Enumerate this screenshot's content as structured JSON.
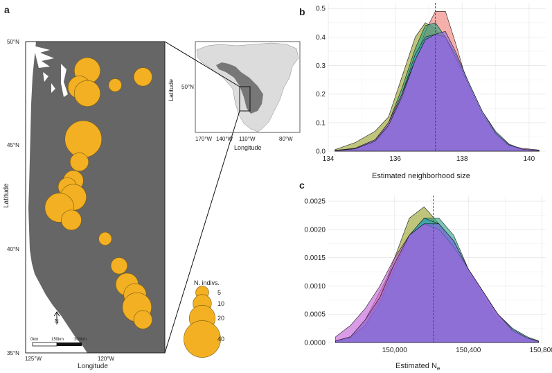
{
  "panel_labels": {
    "a": "a",
    "b": "b",
    "c": "c"
  },
  "colors": {
    "land": "#666666",
    "water": "#ffffff",
    "point": "#f2b022",
    "point_stroke": "#7a5a10",
    "inset_land": "#dcdcdc",
    "inset_range": "#777777",
    "grid": "#e6e6e6",
    "series": [
      "#9aa12c",
      "#ef7f78",
      "#26a385",
      "#2a9dbf",
      "#c35fd6",
      "#8a6be0"
    ]
  },
  "map": {
    "lat_ticks": [
      "50°N",
      "45°N",
      "40°N",
      "35°N"
    ],
    "lon_ticks": [
      "125°W",
      "120°W"
    ],
    "xlabel": "Longitude",
    "ylabel": "Latitude",
    "scale_labels": [
      "0km",
      "150km",
      "300km"
    ],
    "north": "N",
    "points": [
      {
        "lat": 48.6,
        "lon": -122.4,
        "n": 20
      },
      {
        "lat": 48.3,
        "lon": -119.6,
        "n": 10
      },
      {
        "lat": 47.9,
        "lon": -121.0,
        "n": 5
      },
      {
        "lat": 47.8,
        "lon": -122.8,
        "n": 15
      },
      {
        "lat": 47.5,
        "lon": -122.4,
        "n": 20
      },
      {
        "lat": 45.3,
        "lon": -122.6,
        "n": 40
      },
      {
        "lat": 44.2,
        "lon": -122.8,
        "n": 10
      },
      {
        "lat": 43.4,
        "lon": -123.4,
        "n": 2
      },
      {
        "lat": 43.3,
        "lon": -123.1,
        "n": 12
      },
      {
        "lat": 43.0,
        "lon": -123.4,
        "n": 10
      },
      {
        "lat": 42.5,
        "lon": -123.1,
        "n": 20
      },
      {
        "lat": 42.0,
        "lon": -123.8,
        "n": 25
      },
      {
        "lat": 41.4,
        "lon": -123.2,
        "n": 12
      },
      {
        "lat": 40.5,
        "lon": -121.5,
        "n": 5
      },
      {
        "lat": 39.2,
        "lon": -120.8,
        "n": 8
      },
      {
        "lat": 38.3,
        "lon": -120.4,
        "n": 15
      },
      {
        "lat": 37.8,
        "lon": -120.0,
        "n": 15
      },
      {
        "lat": 37.2,
        "lon": -119.9,
        "n": 25
      },
      {
        "lat": 36.6,
        "lon": -119.6,
        "n": 10
      }
    ],
    "legend": {
      "title": "N. indivs.",
      "sizes": [
        5,
        10,
        20,
        40
      ]
    }
  },
  "inset": {
    "xlabel": "Longitude",
    "ylabel": "Latitude",
    "lon_ticks": [
      "170°W",
      "140°W",
      "110°W",
      "80°W"
    ],
    "lat_ticks": [
      "50°N"
    ]
  },
  "chart_data": [
    {
      "type": "area",
      "panel": "b",
      "xlabel": "Estimated neighborhood size",
      "xlim": [
        134,
        140.5
      ],
      "ylim": [
        0,
        0.52
      ],
      "xticks": [
        134,
        136,
        138,
        140
      ],
      "yticks": [
        0.0,
        0.1,
        0.2,
        0.3,
        0.4,
        0.5
      ],
      "xtick_labels": [
        "134",
        "136",
        "138",
        "140"
      ],
      "ytick_labels": [
        "0.0",
        "0.1",
        "0.2",
        "0.3",
        "0.4",
        "0.5"
      ],
      "vline": 137.2,
      "x": [
        134.2,
        134.8,
        135.4,
        135.8,
        136.2,
        136.6,
        136.9,
        137.2,
        137.5,
        137.8,
        138.2,
        138.6,
        139.0,
        139.4,
        139.8,
        140.3
      ],
      "series": [
        {
          "name": "olive",
          "values": [
            0.005,
            0.03,
            0.07,
            0.12,
            0.26,
            0.4,
            0.45,
            0.43,
            0.36,
            0.28,
            0.17,
            0.09,
            0.04,
            0.015,
            0.005,
            0.002
          ]
        },
        {
          "name": "salmon",
          "values": [
            0.002,
            0.008,
            0.03,
            0.08,
            0.18,
            0.32,
            0.42,
            0.49,
            0.49,
            0.38,
            0.22,
            0.11,
            0.05,
            0.015,
            0.005,
            0.001
          ]
        },
        {
          "name": "green",
          "values": [
            0.003,
            0.01,
            0.04,
            0.1,
            0.22,
            0.36,
            0.44,
            0.45,
            0.4,
            0.32,
            0.21,
            0.12,
            0.06,
            0.02,
            0.006,
            0.001
          ]
        },
        {
          "name": "teal",
          "values": [
            0.002,
            0.01,
            0.04,
            0.09,
            0.2,
            0.34,
            0.4,
            0.41,
            0.4,
            0.34,
            0.24,
            0.14,
            0.07,
            0.025,
            0.006,
            0.001
          ]
        },
        {
          "name": "magenta",
          "values": [
            0.002,
            0.01,
            0.04,
            0.1,
            0.2,
            0.32,
            0.39,
            0.41,
            0.4,
            0.33,
            0.23,
            0.13,
            0.06,
            0.02,
            0.01,
            0.004
          ]
        },
        {
          "name": "purple",
          "values": [
            0.002,
            0.008,
            0.035,
            0.09,
            0.19,
            0.32,
            0.39,
            0.41,
            0.42,
            0.35,
            0.24,
            0.14,
            0.065,
            0.022,
            0.007,
            0.002
          ]
        }
      ]
    },
    {
      "type": "area",
      "panel": "c",
      "xlabel": "Estimated N",
      "xlabel_sub": "e",
      "xlim": [
        149640,
        150820
      ],
      "ylim": [
        0,
        0.0026
      ],
      "xticks": [
        150000,
        150400,
        150800
      ],
      "yticks": [
        0.0,
        0.0005,
        0.001,
        0.0015,
        0.002,
        0.0025
      ],
      "xtick_labels": [
        "150,000",
        "150,400",
        "150,800"
      ],
      "ytick_labels": [
        "0.0000",
        "0.0005",
        "0.0010",
        "0.0015",
        "0.0020",
        "0.0025"
      ],
      "vline": 150210,
      "x": [
        149680,
        149760,
        149840,
        149920,
        150000,
        150080,
        150160,
        150240,
        150320,
        150400,
        150480,
        150560,
        150640,
        150720,
        150780
      ],
      "series": [
        {
          "name": "olive",
          "values": [
            3e-05,
            0.0001,
            0.0003,
            0.0008,
            0.0015,
            0.0022,
            0.0024,
            0.0021,
            0.0017,
            0.0012,
            0.0008,
            0.0004,
            0.00015,
            5e-05,
            1e-05
          ]
        },
        {
          "name": "salmon",
          "values": [
            2e-05,
            0.0001,
            0.0004,
            0.0009,
            0.0014,
            0.0019,
            0.0021,
            0.002,
            0.0017,
            0.0013,
            0.0009,
            0.0005,
            0.0002,
            8e-05,
            2e-05
          ]
        },
        {
          "name": "green",
          "values": [
            2e-05,
            0.0001,
            0.0003,
            0.0007,
            0.0013,
            0.0019,
            0.0022,
            0.0022,
            0.0019,
            0.0013,
            0.0008,
            0.0004,
            0.0002,
            7e-05,
            2e-05
          ]
        },
        {
          "name": "teal",
          "values": [
            2e-05,
            8e-05,
            0.0003,
            0.0007,
            0.0013,
            0.0019,
            0.0022,
            0.0021,
            0.0018,
            0.0013,
            0.0009,
            0.0005,
            0.00025,
            0.0001,
            3e-05
          ]
        },
        {
          "name": "magenta",
          "values": [
            0.0001,
            0.0003,
            0.0006,
            0.001,
            0.0015,
            0.0019,
            0.0021,
            0.002,
            0.0017,
            0.0013,
            0.0009,
            0.0005,
            0.0002,
            8e-05,
            2e-05
          ]
        },
        {
          "name": "purple",
          "values": [
            3e-05,
            0.0001,
            0.0004,
            0.0008,
            0.0014,
            0.0019,
            0.0021,
            0.0021,
            0.0018,
            0.0013,
            0.0009,
            0.0005,
            0.00023,
            8e-05,
            2e-05
          ]
        }
      ]
    }
  ]
}
